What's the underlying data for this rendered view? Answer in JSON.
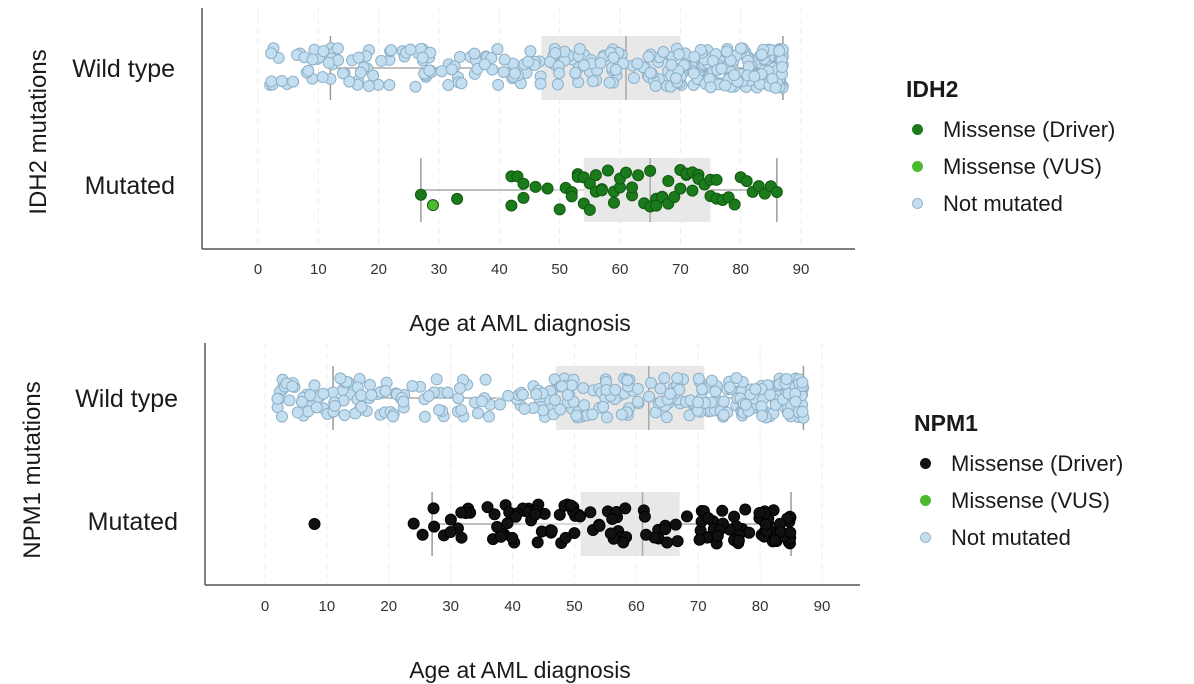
{
  "chart_data": [
    {
      "type": "scatter",
      "ylabel": "IDH2 mutations",
      "xlabel": "Age at AML diagnosis",
      "categories": [
        "Wild type",
        "Mutated"
      ],
      "xticks": [
        "0",
        "10",
        "20",
        "30",
        "40",
        "50",
        "60",
        "70",
        "80",
        "90"
      ],
      "xlim": [
        -10,
        100
      ],
      "legend": {
        "title": "IDH2",
        "placement": "right",
        "entries": [
          {
            "label": "Missense (Driver)",
            "color": "#1b7a1b"
          },
          {
            "label": "Missense (VUS)",
            "color": "#4cba2e"
          },
          {
            "label": "Not mutated",
            "color": "#c2def0"
          }
        ]
      },
      "boxes": [
        {
          "category": "Wild type",
          "min": 12,
          "q1": 47,
          "median": 61,
          "q3": 70,
          "max": 87
        },
        {
          "category": "Mutated",
          "min": 27,
          "q1": 54,
          "median": 65,
          "q3": 75,
          "max": 86
        }
      ],
      "series": [
        {
          "name": "Not mutated",
          "category": "Wild type",
          "color": "#c2def0",
          "n": 330,
          "range": [
            2,
            87
          ]
        },
        {
          "name": "Missense (Driver)",
          "category": "Mutated",
          "color": "#1b7a1b",
          "values": [
            27,
            33,
            42,
            42,
            43,
            44,
            44,
            46,
            48,
            50,
            51,
            52,
            52,
            53,
            53,
            54,
            54,
            55,
            55,
            56,
            56,
            57,
            57,
            58,
            59,
            59,
            60,
            60,
            61,
            62,
            62,
            63,
            64,
            65,
            65,
            66,
            66,
            67,
            67,
            68,
            68,
            69,
            70,
            70,
            71,
            71,
            72,
            72,
            73,
            73,
            74,
            75,
            75,
            76,
            76,
            77,
            78,
            79,
            80,
            81,
            82,
            83,
            84,
            85,
            86
          ]
        },
        {
          "name": "Missense (VUS)",
          "category": "Mutated",
          "color": "#4cba2e",
          "values": [
            29
          ]
        }
      ]
    },
    {
      "type": "scatter",
      "ylabel": "NPM1 mutations",
      "xlabel": "Age at AML diagnosis",
      "categories": [
        "Wild type",
        "Mutated"
      ],
      "xticks": [
        "0",
        "10",
        "20",
        "30",
        "40",
        "50",
        "60",
        "70",
        "80",
        "90"
      ],
      "xlim": [
        -10,
        100
      ],
      "legend": {
        "title": "NPM1",
        "placement": "right",
        "entries": [
          {
            "label": "Missense (Driver)",
            "color": "#111111"
          },
          {
            "label": "Missense (VUS)",
            "color": "#4cba2e"
          },
          {
            "label": "Not mutated",
            "color": "#c2def0"
          }
        ]
      },
      "boxes": [
        {
          "category": "Wild type",
          "min": 11,
          "q1": 47,
          "median": 62,
          "q3": 71,
          "max": 87
        },
        {
          "category": "Mutated",
          "min": 27,
          "q1": 51,
          "median": 61,
          "q3": 67,
          "max": 85
        }
      ],
      "series": [
        {
          "name": "Not mutated",
          "category": "Wild type",
          "color": "#c2def0",
          "n": 330,
          "range": [
            2,
            87
          ]
        },
        {
          "name": "Missense (Driver)",
          "category": "Mutated",
          "color": "#111111",
          "n": 140,
          "range": [
            24,
            85
          ],
          "outliers": [
            8
          ]
        },
        {
          "name": "Missense (VUS)",
          "category": "Mutated",
          "color": "#4cba2e",
          "values": []
        }
      ]
    }
  ]
}
